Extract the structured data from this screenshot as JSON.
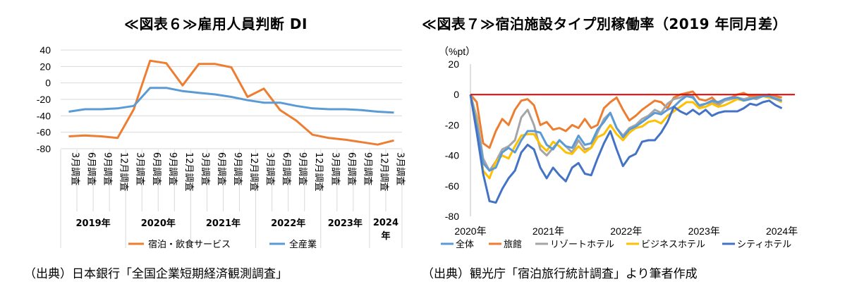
{
  "left": {
    "title": "≪図表６≫雇用人員判断 DI",
    "source": "（出典）日本銀行「全国企業短期経済観測調査」"
  },
  "right": {
    "title": "≪図表７≫宿泊施設タイプ別稼働率（2019 年同月差）",
    "source": "（出典）観光庁「宿泊旅行統計調査」より筆者作成"
  },
  "chart_data": [
    {
      "type": "line",
      "title": "≪図表６≫雇用人員判断 DI",
      "ylim": [
        -80,
        40
      ],
      "yticks": [
        "40",
        "20",
        "0",
        "-20",
        "-40",
        "-60",
        "-80"
      ],
      "categories": [
        "3月調査",
        "6月調査",
        "9月調査",
        "12月調査",
        "3月調査",
        "6月調査",
        "9月調査",
        "12月調査",
        "3月調査",
        "6月調査",
        "9月調査",
        "12月調査",
        "3月調査",
        "6月調査",
        "9月調査",
        "12月調査",
        "3月調査",
        "6月調査",
        "9月調査",
        "12月調査",
        "3月調査"
      ],
      "year_groups": [
        {
          "label": "2019年",
          "span": 4
        },
        {
          "label": "2020年",
          "span": 4
        },
        {
          "label": "2021年",
          "span": 4
        },
        {
          "label": "2022年",
          "span": 4
        },
        {
          "label": "2023年",
          "span": 3
        },
        {
          "label": "2024年",
          "span": 2
        }
      ],
      "grid": true,
      "legend_position": "bottom",
      "series": [
        {
          "name": "宿泊・飲食サービス",
          "color": "#ED7D31",
          "values": [
            -65,
            -64,
            -65,
            -67,
            -32,
            27,
            24,
            -3,
            23,
            23,
            19,
            -17,
            -7,
            -33,
            -46,
            -63,
            -67,
            -69,
            -72,
            -75,
            -70
          ]
        },
        {
          "name": "全産業",
          "color": "#5B9BD5",
          "values": [
            -35,
            -32,
            -32,
            -31,
            -28,
            -6,
            -6,
            -10,
            -12,
            -14,
            -17,
            -21,
            -24,
            -24,
            -28,
            -31,
            -32,
            -32,
            -33,
            -35,
            -36
          ]
        }
      ]
    },
    {
      "type": "line",
      "title": "≪図表７≫宿泊施設タイプ別稼働率（2019 年同月差）",
      "ylabel": "（%pt）",
      "ylim": [
        -80,
        20
      ],
      "yticks": [
        "20",
        "0",
        "-20",
        "-40",
        "-60",
        "-80"
      ],
      "x_labels": [
        "2020年",
        "2021年",
        "2022年",
        "2023年",
        "2024年"
      ],
      "grid": false,
      "legend_position": "bottom",
      "reference_line": {
        "value": 0,
        "color": "#E00000"
      },
      "series": [
        {
          "name": "全体",
          "color": "#5B9BD5",
          "values": [
            0,
            -20,
            -45,
            -50,
            -48,
            -38,
            -35,
            -38,
            -30,
            -24,
            -24,
            -25,
            -33,
            -36,
            -30,
            -34,
            -35,
            -27,
            -33,
            -32,
            -23,
            -18,
            -12,
            -22,
            -28,
            -23,
            -21,
            -18,
            -15,
            -12,
            -13,
            -10,
            -8,
            -4,
            -1,
            -2,
            -7,
            -6,
            -4,
            -5,
            -3,
            -2,
            -2,
            -4,
            -3,
            -2,
            -1,
            -1,
            -3,
            -4
          ]
        },
        {
          "name": "旅館",
          "color": "#ED7D31",
          "values": [
            0,
            -5,
            -32,
            -35,
            -24,
            -16,
            -20,
            -10,
            -4,
            -3,
            -7,
            -20,
            -18,
            -23,
            -22,
            -24,
            -20,
            -22,
            -16,
            -22,
            -20,
            -9,
            -5,
            -2,
            -10,
            -17,
            -14,
            -10,
            -7,
            -4,
            -5,
            -9,
            -2,
            0,
            1,
            2,
            -3,
            -4,
            -2,
            -6,
            -3,
            -2,
            0,
            1,
            -1,
            -1,
            -1,
            0,
            -1,
            -2
          ]
        },
        {
          "name": "リゾートホテル",
          "color": "#A5A5A5",
          "values": [
            0,
            -15,
            -42,
            -50,
            -44,
            -36,
            -34,
            -30,
            -15,
            -10,
            -20,
            -36,
            -40,
            -35,
            -30,
            -34,
            -38,
            -30,
            -36,
            -35,
            -25,
            -16,
            -12,
            -22,
            -27,
            -22,
            -20,
            -16,
            -14,
            -10,
            -12,
            -6,
            -3,
            -2,
            0,
            -1,
            -8,
            -6,
            -5,
            -7,
            -4,
            -3,
            -2,
            -3,
            -2,
            -3,
            -1,
            -1,
            -2,
            -4
          ]
        },
        {
          "name": "ビジネスホテル",
          "color": "#FFC000",
          "values": [
            0,
            -18,
            -50,
            -55,
            -44,
            -40,
            -42,
            -34,
            -27,
            -26,
            -26,
            -33,
            -37,
            -31,
            -34,
            -38,
            -39,
            -34,
            -38,
            -35,
            -28,
            -26,
            -20,
            -26,
            -30,
            -25,
            -22,
            -21,
            -18,
            -17,
            -19,
            -14,
            -11,
            -8,
            -5,
            -5,
            -9,
            -8,
            -6,
            -8,
            -7,
            -5,
            -3,
            -4,
            -3,
            -2,
            -1,
            -2,
            -3,
            -5
          ]
        },
        {
          "name": "シティホテル",
          "color": "#4472C4",
          "values": [
            0,
            -25,
            -52,
            -70,
            -71,
            -62,
            -55,
            -50,
            -38,
            -33,
            -36,
            -48,
            -55,
            -48,
            -53,
            -57,
            -48,
            -45,
            -52,
            -53,
            -42,
            -32,
            -24,
            -36,
            -47,
            -41,
            -39,
            -31,
            -30,
            -30,
            -25,
            -18,
            -8,
            -11,
            -13,
            -10,
            -13,
            -10,
            -14,
            -12,
            -11,
            -11,
            -11,
            -9,
            -6,
            -7,
            -5,
            -4,
            -7,
            -9
          ]
        }
      ]
    }
  ]
}
